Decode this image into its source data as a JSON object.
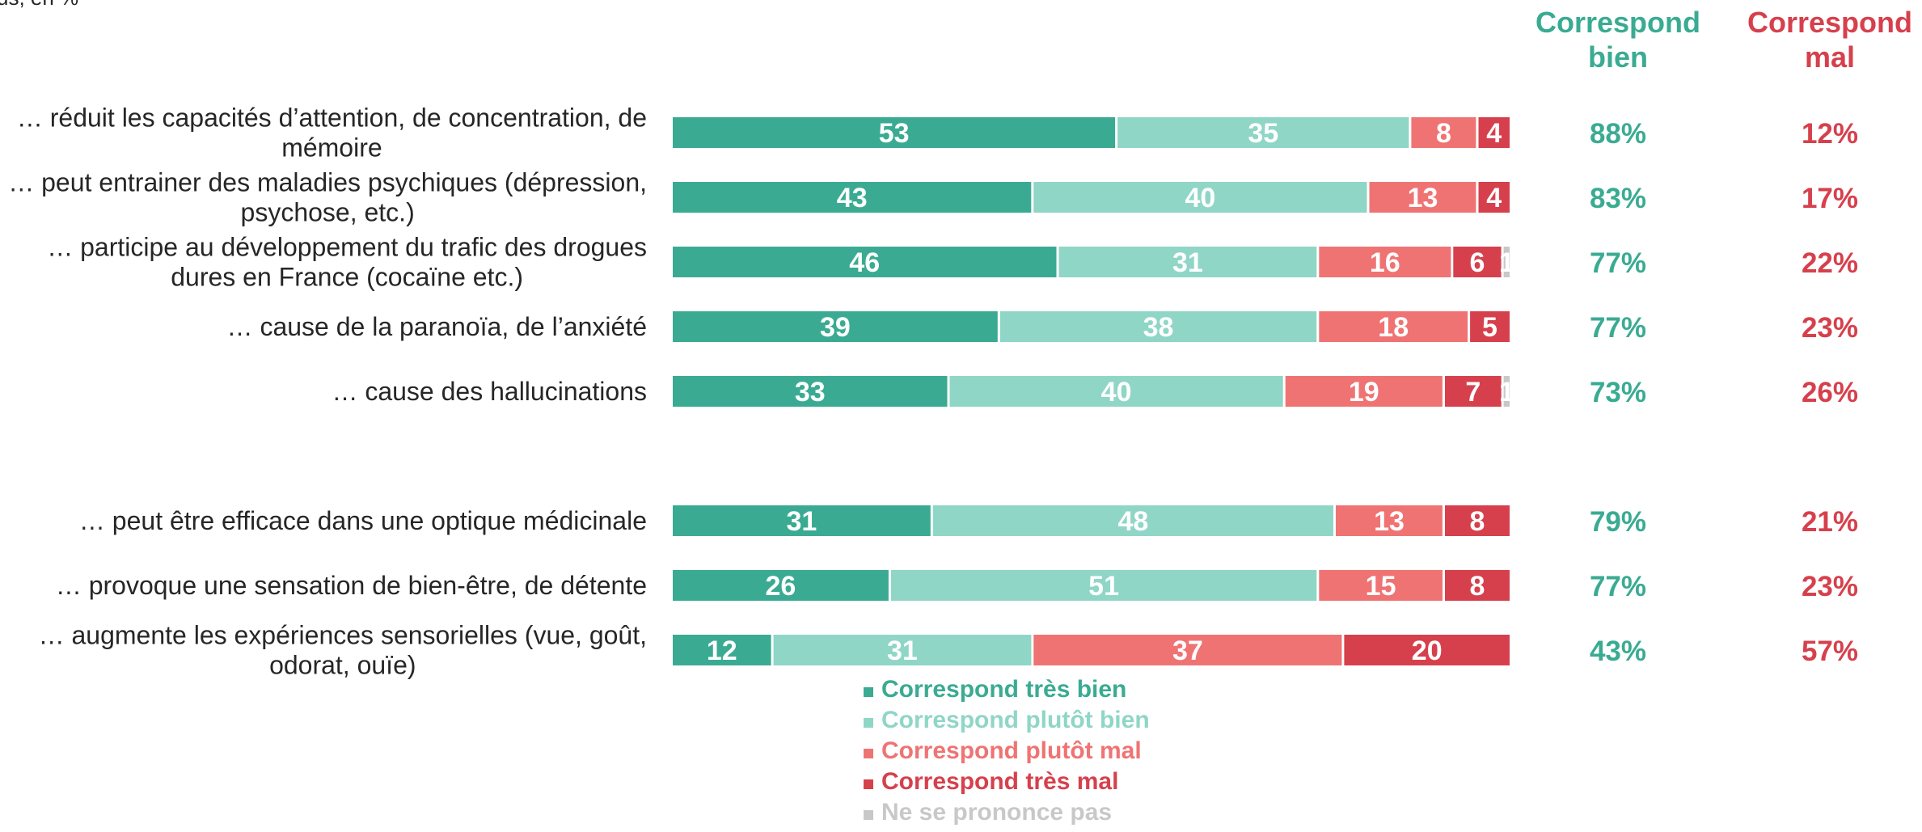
{
  "corner_note": "us, en %",
  "colors": {
    "tres_bien": "#3aab92",
    "plutot_bien": "#8fd6c7",
    "plutot_mal": "#f07373",
    "tres_mal": "#d6404c",
    "nsp": "#c8c8c8",
    "bien_text": "#3aab92",
    "mal_text": "#d6404c"
  },
  "column_headers": {
    "bien": [
      "Correspond",
      "bien"
    ],
    "mal": [
      "Correspond",
      "mal"
    ]
  },
  "chart_data": {
    "type": "bar",
    "orientation": "horizontal",
    "stacked": true,
    "categories": [
      [
        "… réduit les capacités d’attention, de concentration, de",
        "mémoire"
      ],
      [
        "… peut entrainer des maladies psychiques (dépression,",
        "psychose, etc.)"
      ],
      [
        "… participe au développement du trafic des drogues",
        "dures en France (cocaïne etc.)"
      ],
      [
        "… cause de la paranoïa, de l’anxiété"
      ],
      [
        "… cause des hallucinations"
      ],
      [
        "… peut être efficace dans une optique médicinale"
      ],
      [
        "… provoque une sensation de bien-être, de détente"
      ],
      [
        "… augmente les expériences sensorielles (vue, goût,",
        "odorat, ouïe)"
      ]
    ],
    "series": [
      {
        "name": "Correspond très bien",
        "color_key": "tres_bien",
        "values": [
          53,
          43,
          46,
          39,
          33,
          31,
          26,
          12
        ]
      },
      {
        "name": "Correspond plutôt bien",
        "color_key": "plutot_bien",
        "values": [
          35,
          40,
          31,
          38,
          40,
          48,
          51,
          31
        ]
      },
      {
        "name": "Correspond plutôt mal",
        "color_key": "plutot_mal",
        "values": [
          8,
          13,
          16,
          18,
          19,
          13,
          15,
          37
        ]
      },
      {
        "name": "Correspond très mal",
        "color_key": "tres_mal",
        "values": [
          4,
          4,
          6,
          5,
          7,
          8,
          8,
          20
        ]
      },
      {
        "name": "Ne se prononce pas",
        "color_key": "nsp",
        "values": [
          0,
          0,
          1,
          0,
          1,
          0,
          0,
          0
        ]
      }
    ],
    "segment_labels": [
      [
        "53",
        "35",
        "8",
        "4",
        ""
      ],
      [
        "43",
        "40",
        "13",
        "4",
        ""
      ],
      [
        "46",
        "31",
        "16",
        "6",
        "1"
      ],
      [
        "39",
        "38",
        "18",
        "5",
        ""
      ],
      [
        "33",
        "40",
        "19",
        "7",
        "1"
      ],
      [
        "31",
        "48",
        "13",
        "8",
        ""
      ],
      [
        "26",
        "51",
        "15",
        "8",
        ""
      ],
      [
        "12",
        "31",
        "37",
        "20",
        ""
      ]
    ],
    "totals_bien": [
      "88%",
      "83%",
      "77%",
      "77%",
      "73%",
      "79%",
      "77%",
      "43%"
    ],
    "totals_mal": [
      "12%",
      "17%",
      "22%",
      "23%",
      "26%",
      "21%",
      "23%",
      "57%"
    ],
    "xlim": [
      0,
      100
    ],
    "legend_position": "bottom",
    "grid": false
  }
}
